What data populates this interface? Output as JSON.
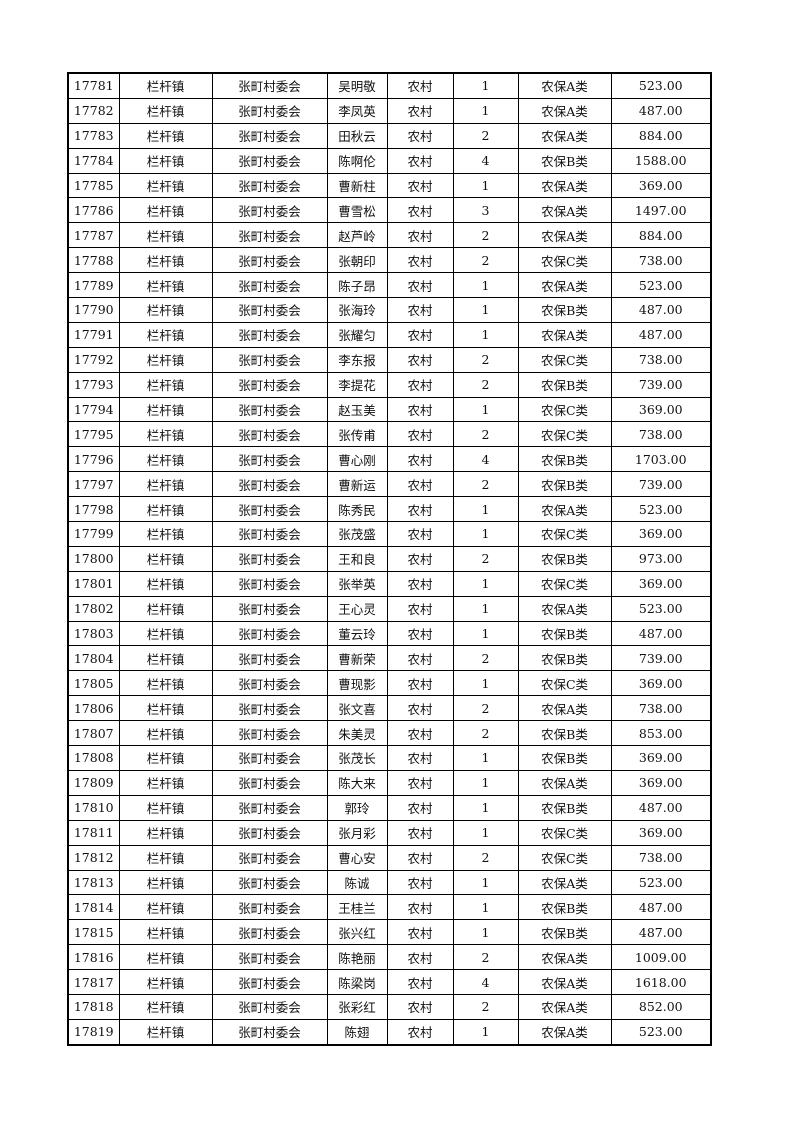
{
  "table": {
    "rows": [
      [
        "17781",
        "栏杆镇",
        "张町村委会",
        "吴明敬",
        "农村",
        "1",
        "农保A类",
        "523.00"
      ],
      [
        "17782",
        "栏杆镇",
        "张町村委会",
        "李凤英",
        "农村",
        "1",
        "农保A类",
        "487.00"
      ],
      [
        "17783",
        "栏杆镇",
        "张町村委会",
        "田秋云",
        "农村",
        "2",
        "农保A类",
        "884.00"
      ],
      [
        "17784",
        "栏杆镇",
        "张町村委会",
        "陈啊伦",
        "农村",
        "4",
        "农保B类",
        "1588.00"
      ],
      [
        "17785",
        "栏杆镇",
        "张町村委会",
        "曹新柱",
        "农村",
        "1",
        "农保A类",
        "369.00"
      ],
      [
        "17786",
        "栏杆镇",
        "张町村委会",
        "曹雪松",
        "农村",
        "3",
        "农保A类",
        "1497.00"
      ],
      [
        "17787",
        "栏杆镇",
        "张町村委会",
        "赵芦岭",
        "农村",
        "2",
        "农保A类",
        "884.00"
      ],
      [
        "17788",
        "栏杆镇",
        "张町村委会",
        "张朝印",
        "农村",
        "2",
        "农保C类",
        "738.00"
      ],
      [
        "17789",
        "栏杆镇",
        "张町村委会",
        "陈子昂",
        "农村",
        "1",
        "农保A类",
        "523.00"
      ],
      [
        "17790",
        "栏杆镇",
        "张町村委会",
        "张海玲",
        "农村",
        "1",
        "农保B类",
        "487.00"
      ],
      [
        "17791",
        "栏杆镇",
        "张町村委会",
        "张耀匀",
        "农村",
        "1",
        "农保A类",
        "487.00"
      ],
      [
        "17792",
        "栏杆镇",
        "张町村委会",
        "李东报",
        "农村",
        "2",
        "农保C类",
        "738.00"
      ],
      [
        "17793",
        "栏杆镇",
        "张町村委会",
        "李提花",
        "农村",
        "2",
        "农保B类",
        "739.00"
      ],
      [
        "17794",
        "栏杆镇",
        "张町村委会",
        "赵玉美",
        "农村",
        "1",
        "农保C类",
        "369.00"
      ],
      [
        "17795",
        "栏杆镇",
        "张町村委会",
        "张传甫",
        "农村",
        "2",
        "农保C类",
        "738.00"
      ],
      [
        "17796",
        "栏杆镇",
        "张町村委会",
        "曹心刚",
        "农村",
        "4",
        "农保B类",
        "1703.00"
      ],
      [
        "17797",
        "栏杆镇",
        "张町村委会",
        "曹新运",
        "农村",
        "2",
        "农保B类",
        "739.00"
      ],
      [
        "17798",
        "栏杆镇",
        "张町村委会",
        "陈秀民",
        "农村",
        "1",
        "农保A类",
        "523.00"
      ],
      [
        "17799",
        "栏杆镇",
        "张町村委会",
        "张茂盛",
        "农村",
        "1",
        "农保C类",
        "369.00"
      ],
      [
        "17800",
        "栏杆镇",
        "张町村委会",
        "王和良",
        "农村",
        "2",
        "农保B类",
        "973.00"
      ],
      [
        "17801",
        "栏杆镇",
        "张町村委会",
        "张举英",
        "农村",
        "1",
        "农保C类",
        "369.00"
      ],
      [
        "17802",
        "栏杆镇",
        "张町村委会",
        "王心灵",
        "农村",
        "1",
        "农保A类",
        "523.00"
      ],
      [
        "17803",
        "栏杆镇",
        "张町村委会",
        "董云玲",
        "农村",
        "1",
        "农保B类",
        "487.00"
      ],
      [
        "17804",
        "栏杆镇",
        "张町村委会",
        "曹新荣",
        "农村",
        "2",
        "农保B类",
        "739.00"
      ],
      [
        "17805",
        "栏杆镇",
        "张町村委会",
        "曹现影",
        "农村",
        "1",
        "农保C类",
        "369.00"
      ],
      [
        "17806",
        "栏杆镇",
        "张町村委会",
        "张文喜",
        "农村",
        "2",
        "农保A类",
        "738.00"
      ],
      [
        "17807",
        "栏杆镇",
        "张町村委会",
        "朱美灵",
        "农村",
        "2",
        "农保B类",
        "853.00"
      ],
      [
        "17808",
        "栏杆镇",
        "张町村委会",
        "张茂长",
        "农村",
        "1",
        "农保B类",
        "369.00"
      ],
      [
        "17809",
        "栏杆镇",
        "张町村委会",
        "陈大来",
        "农村",
        "1",
        "农保A类",
        "369.00"
      ],
      [
        "17810",
        "栏杆镇",
        "张町村委会",
        "郭玲",
        "农村",
        "1",
        "农保B类",
        "487.00"
      ],
      [
        "17811",
        "栏杆镇",
        "张町村委会",
        "张月彩",
        "农村",
        "1",
        "农保C类",
        "369.00"
      ],
      [
        "17812",
        "栏杆镇",
        "张町村委会",
        "曹心安",
        "农村",
        "2",
        "农保C类",
        "738.00"
      ],
      [
        "17813",
        "栏杆镇",
        "张町村委会",
        "陈诚",
        "农村",
        "1",
        "农保A类",
        "523.00"
      ],
      [
        "17814",
        "栏杆镇",
        "张町村委会",
        "王桂兰",
        "农村",
        "1",
        "农保B类",
        "487.00"
      ],
      [
        "17815",
        "栏杆镇",
        "张町村委会",
        "张兴红",
        "农村",
        "1",
        "农保B类",
        "487.00"
      ],
      [
        "17816",
        "栏杆镇",
        "张町村委会",
        "陈艳丽",
        "农村",
        "2",
        "农保A类",
        "1009.00"
      ],
      [
        "17817",
        "栏杆镇",
        "张町村委会",
        "陈梁岗",
        "农村",
        "4",
        "农保A类",
        "1618.00"
      ],
      [
        "17818",
        "栏杆镇",
        "张町村委会",
        "张彩红",
        "农村",
        "2",
        "农保A类",
        "852.00"
      ],
      [
        "17819",
        "栏杆镇",
        "张町村委会",
        "陈翅",
        "农村",
        "1",
        "农保A类",
        "523.00"
      ]
    ]
  }
}
